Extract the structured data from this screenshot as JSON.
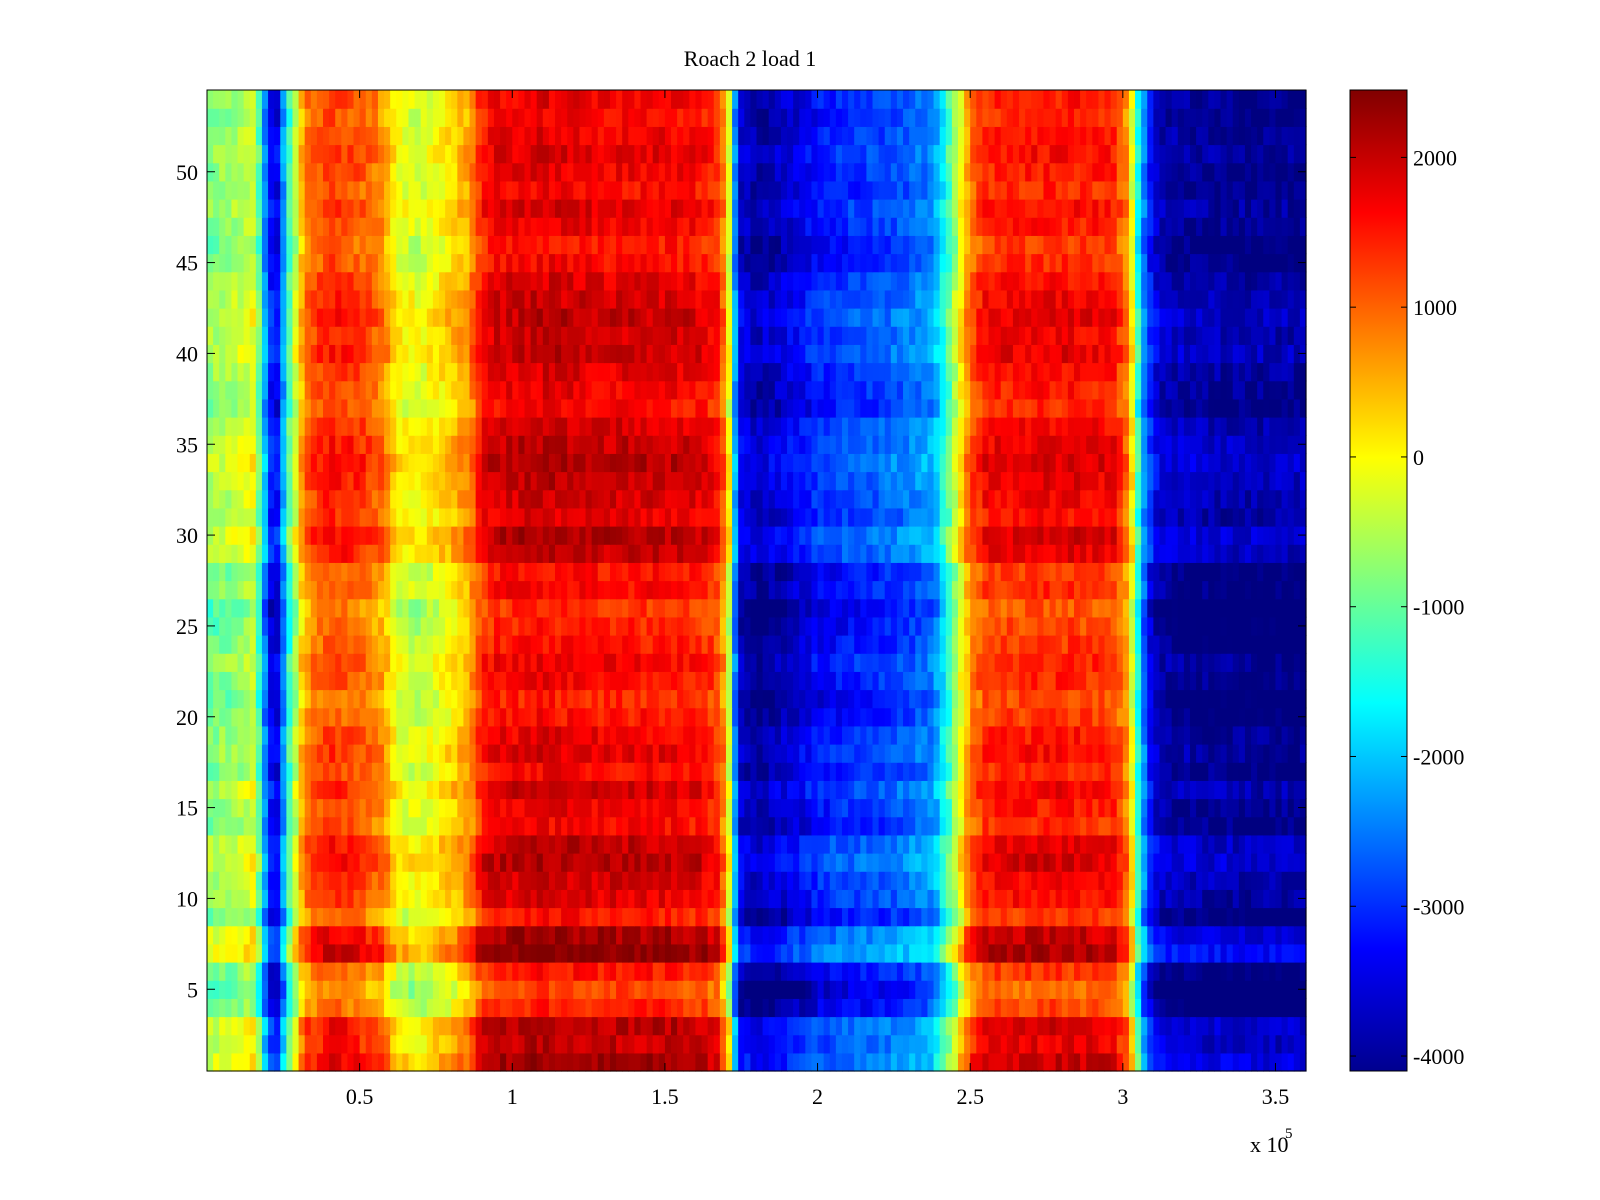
{
  "chart_data": {
    "type": "heatmap",
    "title": "Roach 2 load 1",
    "xlabel": "",
    "ylabel": "",
    "x_exponent_label": "x 10",
    "x_exponent_power": "5",
    "xlim": [
      0,
      3.6
    ],
    "ylim": [
      0.5,
      54.5
    ],
    "x_scale_factor": 100000,
    "x_ticks": [
      0.5,
      1,
      1.5,
      2,
      2.5,
      3,
      3.5
    ],
    "x_tick_labels": [
      "0.5",
      "1",
      "1.5",
      "2",
      "2.5",
      "3",
      "3.5"
    ],
    "y_ticks": [
      5,
      10,
      15,
      20,
      25,
      30,
      35,
      40,
      45,
      50
    ],
    "y_tick_labels": [
      "5",
      "10",
      "15",
      "20",
      "25",
      "30",
      "35",
      "40",
      "45",
      "50"
    ],
    "rows": 54,
    "colormap": "jet",
    "clim": [
      -4100,
      2450
    ],
    "colorbar_ticks": [
      2000,
      1000,
      0,
      -1000,
      -2000,
      -3000,
      -4000
    ],
    "colorbar_tick_labels": [
      "2000",
      "1000",
      "0",
      "-1000",
      "-2000",
      "-3000",
      "-4000"
    ],
    "column_profile": {
      "x": [
        0,
        0.1,
        0.15,
        0.18,
        0.2,
        0.23,
        0.27,
        0.32,
        0.4,
        0.5,
        0.58,
        0.62,
        0.7,
        0.8,
        0.86,
        0.9,
        0.95,
        1.1,
        1.3,
        1.5,
        1.62,
        1.68,
        1.71,
        1.74,
        1.8,
        1.9,
        2.0,
        2.1,
        2.2,
        2.3,
        2.38,
        2.43,
        2.47,
        2.5,
        2.55,
        2.7,
        2.85,
        2.97,
        3.02,
        3.05,
        3.08,
        3.12,
        3.2,
        3.4,
        3.6
      ],
      "values": [
        -800,
        -600,
        -300,
        -1500,
        -3200,
        -3400,
        -1200,
        800,
        1300,
        1100,
        700,
        -100,
        -300,
        200,
        600,
        1500,
        1700,
        1800,
        1700,
        1700,
        1600,
        1300,
        -200,
        -3500,
        -3900,
        -3600,
        -3200,
        -3000,
        -2900,
        -2700,
        -2400,
        -1200,
        0,
        900,
        1400,
        1500,
        1500,
        1400,
        600,
        -1500,
        -3000,
        -3800,
        -3900,
        -4000,
        -4000
      ]
    },
    "row_offsets": {
      "rows": [
        1,
        2,
        3,
        4,
        5,
        6,
        7,
        8,
        9,
        10,
        11,
        12,
        13,
        14,
        15,
        16,
        17,
        18,
        19,
        20,
        21,
        22,
        23,
        24,
        25,
        26,
        27,
        28,
        29,
        30,
        31,
        32,
        33,
        34,
        35,
        36,
        37,
        38,
        39,
        40,
        41,
        42,
        43,
        44,
        45,
        46,
        47,
        48,
        49,
        50,
        51,
        52,
        53,
        54
      ],
      "values": [
        500,
        300,
        400,
        -300,
        -500,
        -200,
        700,
        500,
        -200,
        100,
        200,
        400,
        300,
        -100,
        0,
        200,
        -100,
        100,
        0,
        -200,
        -300,
        -100,
        0,
        -200,
        -300,
        -400,
        -100,
        -200,
        300,
        400,
        100,
        200,
        300,
        400,
        300,
        200,
        -100,
        0,
        100,
        300,
        200,
        300,
        200,
        100,
        -100,
        -200,
        0,
        100,
        -100,
        0,
        100,
        0,
        -100,
        0
      ]
    }
  }
}
